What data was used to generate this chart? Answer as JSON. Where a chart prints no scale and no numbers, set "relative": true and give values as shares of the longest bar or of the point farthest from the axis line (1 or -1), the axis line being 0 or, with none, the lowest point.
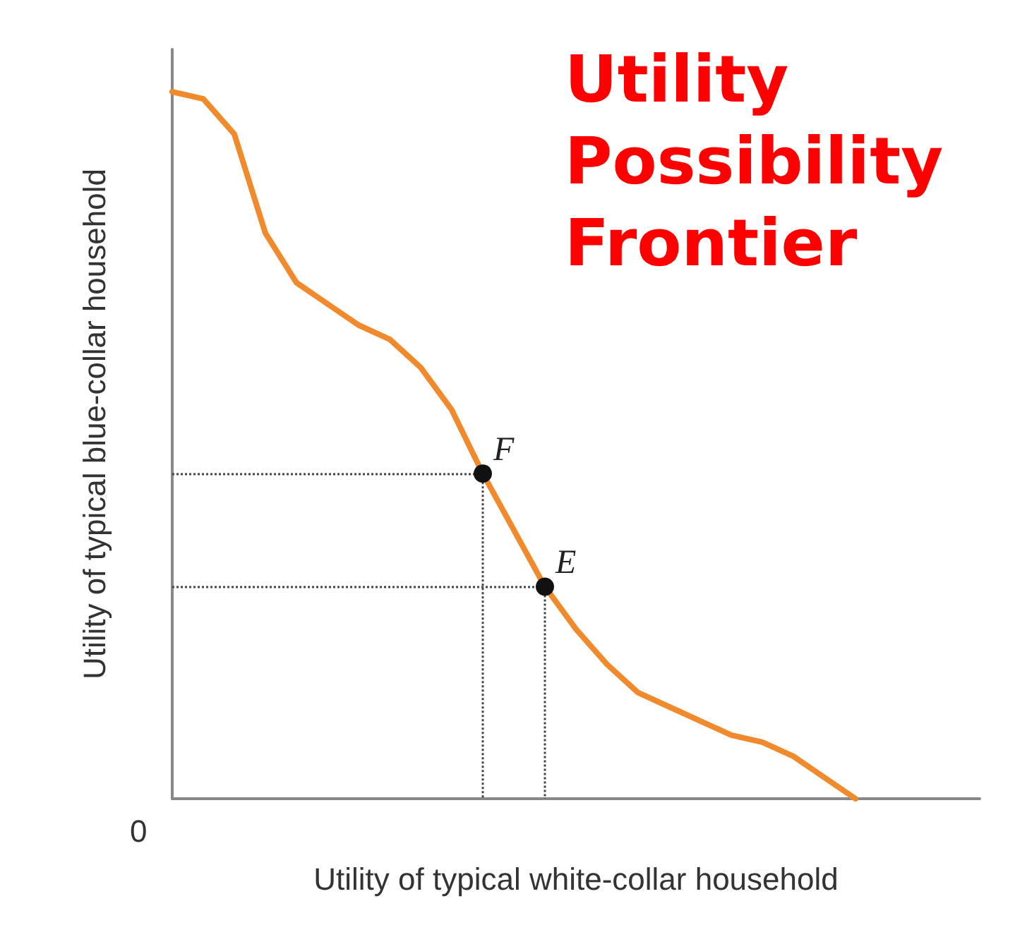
{
  "chart_data": {
    "type": "line",
    "title": "Utility Possibility Frontier",
    "xlabel": "Utility of typical white-collar household",
    "ylabel": "Utility of typical blue-collar household",
    "annotations": [
      "0"
    ],
    "relative": true,
    "grid": false,
    "categories": [
      null,
      null,
      null,
      null,
      null,
      null,
      null,
      null,
      null,
      null,
      null,
      null,
      null,
      null,
      null,
      null,
      null,
      null,
      null,
      null,
      null,
      null,
      null,
      null,
      null,
      null,
      null
    ],
    "series": [
      {
        "color": "#f08a2c",
        "values": [
          1.0,
          0.99,
          0.94,
          0.8,
          0.73,
          0.7,
          0.67,
          0.65,
          0.61,
          0.55,
          0.46,
          0.38,
          0.3,
          0.24,
          0.19,
          0.15,
          0.13,
          0.11,
          0.09,
          0.08,
          0.06,
          0.03,
          0,
          null,
          null,
          null,
          null
        ]
      }
    ],
    "ref_lines": [
      {
        "axis": "y",
        "value": 0.46,
        "label": "F",
        "color": "#444444",
        "line_style": "dotted"
      },
      {
        "axis": "y",
        "value": 0.3,
        "label": "E",
        "color": "#444444",
        "line_style": "dotted"
      }
    ]
  }
}
